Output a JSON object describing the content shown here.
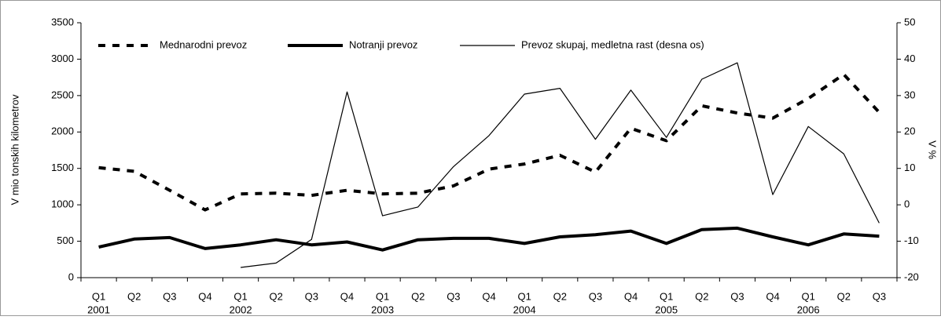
{
  "chart_data": {
    "type": "line",
    "categories": [
      "Q1",
      "Q2",
      "Q3",
      "Q4",
      "Q1",
      "Q2",
      "Q3",
      "Q4",
      "Q1",
      "Q2",
      "Q3",
      "Q4",
      "Q1",
      "Q2",
      "Q3",
      "Q4",
      "Q1",
      "Q2",
      "Q3",
      "Q4",
      "Q1",
      "Q2",
      "Q3"
    ],
    "category_years": [
      "2001",
      null,
      null,
      null,
      "2002",
      null,
      null,
      null,
      "2003",
      null,
      null,
      null,
      "2004",
      null,
      null,
      null,
      "2005",
      null,
      null,
      null,
      "2006",
      null,
      null
    ],
    "y_label": "V mio tonskih kilometrov",
    "y2_label": "V %",
    "ylim": [
      0,
      3500
    ],
    "yticks": [
      0,
      500,
      1000,
      1500,
      2000,
      2500,
      3000,
      3500
    ],
    "y2lim": [
      -20,
      50
    ],
    "y2ticks": [
      -20,
      -10,
      0,
      10,
      20,
      30,
      40,
      50
    ],
    "series": [
      {
        "name": "Mednarodni prevoz",
        "color": "#000000",
        "style": "dashed",
        "values": [
          1510,
          1460,
          1200,
          930,
          1150,
          1160,
          1130,
          1200,
          1150,
          1160,
          1260,
          1490,
          1560,
          1680,
          1450,
          2050,
          1880,
          2360,
          2260,
          2190,
          2460,
          2790,
          2270
        ]
      },
      {
        "name": "Notranji prevoz",
        "color": "#000000",
        "style": "thick",
        "values": [
          420,
          530,
          550,
          400,
          450,
          520,
          450,
          490,
          380,
          520,
          540,
          540,
          470,
          560,
          590,
          640,
          470,
          660,
          680,
          560,
          450,
          600,
          570
        ]
      },
      {
        "name": "Prevoz skupaj, medletna rast (desna os)",
        "color": "#000000",
        "style": "thin",
        "axis": "y2",
        "values": [
          null,
          null,
          null,
          null,
          -17.2,
          -16,
          -9.5,
          31,
          -3,
          -0.6,
          10.5,
          19,
          30.4,
          32,
          18,
          31.5,
          18.5,
          34.5,
          39,
          2.8,
          21.5,
          14,
          -5
        ]
      }
    ]
  }
}
